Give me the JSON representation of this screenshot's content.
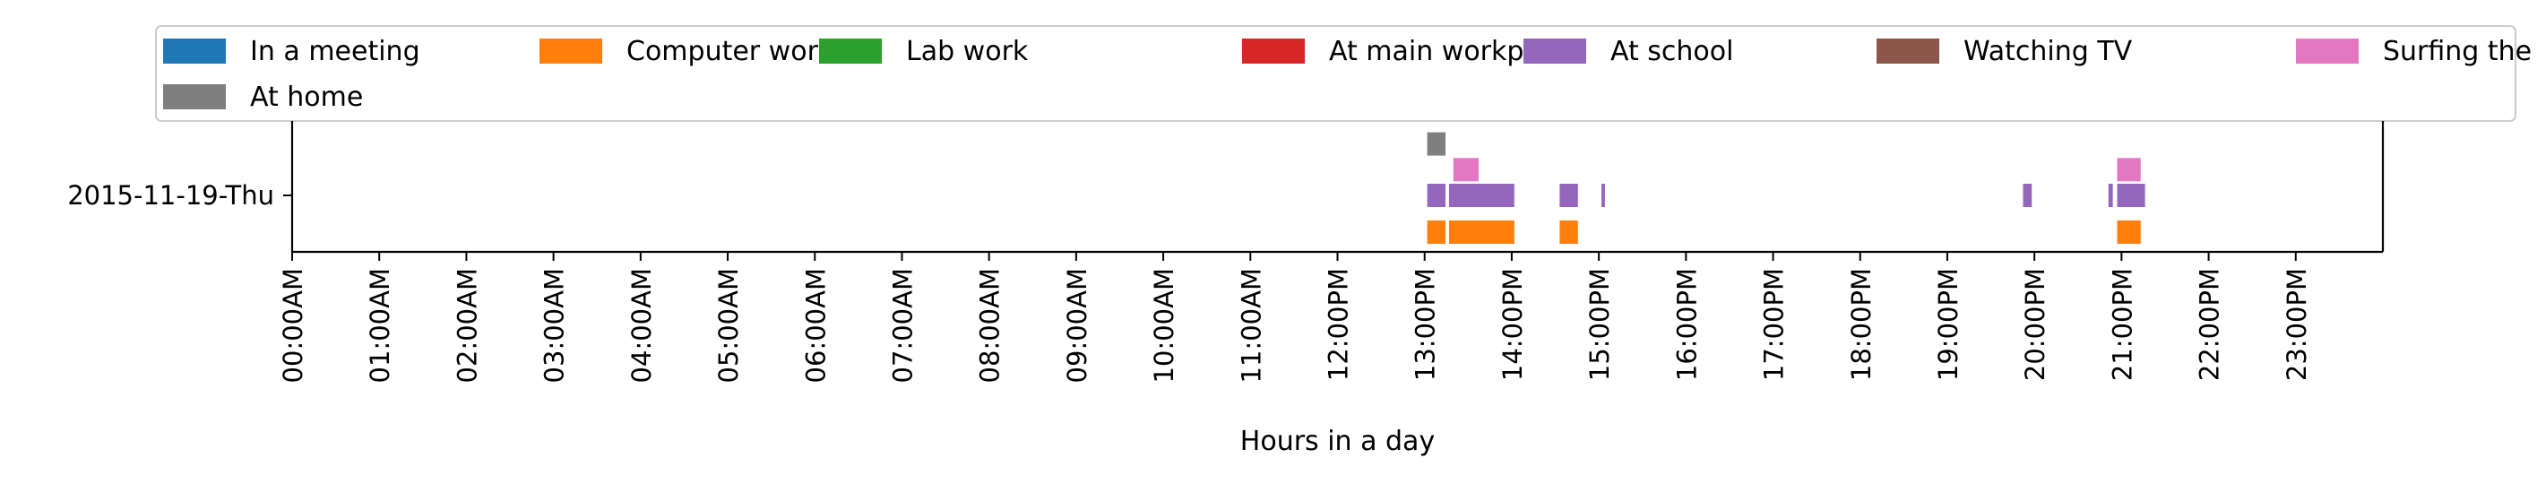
{
  "chart_data": {
    "type": "timeline",
    "xlabel": "Hours in a day",
    "ylabel": "",
    "xlim": [
      0,
      24
    ],
    "grid": false,
    "legend_placement": "top",
    "y_categories": [
      "2015-11-19-Thu"
    ],
    "x_ticks": [
      {
        "value": 0,
        "label": "00:00AM"
      },
      {
        "value": 1,
        "label": "01:00AM"
      },
      {
        "value": 2,
        "label": "02:00AM"
      },
      {
        "value": 3,
        "label": "03:00AM"
      },
      {
        "value": 4,
        "label": "04:00AM"
      },
      {
        "value": 5,
        "label": "05:00AM"
      },
      {
        "value": 6,
        "label": "06:00AM"
      },
      {
        "value": 7,
        "label": "07:00AM"
      },
      {
        "value": 8,
        "label": "08:00AM"
      },
      {
        "value": 9,
        "label": "09:00AM"
      },
      {
        "value": 10,
        "label": "10:00AM"
      },
      {
        "value": 11,
        "label": "11:00AM"
      },
      {
        "value": 12,
        "label": "12:00PM"
      },
      {
        "value": 13,
        "label": "13:00PM"
      },
      {
        "value": 14,
        "label": "14:00PM"
      },
      {
        "value": 15,
        "label": "15:00PM"
      },
      {
        "value": 16,
        "label": "16:00PM"
      },
      {
        "value": 17,
        "label": "17:00PM"
      },
      {
        "value": 18,
        "label": "18:00PM"
      },
      {
        "value": 19,
        "label": "19:00PM"
      },
      {
        "value": 20,
        "label": "20:00PM"
      },
      {
        "value": 21,
        "label": "21:00PM"
      },
      {
        "value": 22,
        "label": "22:00PM"
      },
      {
        "value": 23,
        "label": "23:00PM"
      }
    ],
    "series": [
      {
        "name": "In a meeting",
        "color": "#1f77b4",
        "lane": 5,
        "intervals": []
      },
      {
        "name": "Computer work",
        "color": "#ff7f0e",
        "lane": -1,
        "intervals": [
          [
            13.03,
            13.24
          ],
          [
            13.28,
            14.03
          ],
          [
            14.55,
            14.76
          ],
          [
            20.95,
            21.22
          ]
        ]
      },
      {
        "name": "Lab work",
        "color": "#2ca02c",
        "lane": 4,
        "intervals": []
      },
      {
        "name": "At main workplace",
        "color": "#d62728",
        "lane": 3,
        "intervals": []
      },
      {
        "name": "At school",
        "color": "#9467bd",
        "lane": 0,
        "intervals": [
          [
            13.03,
            13.24
          ],
          [
            13.28,
            14.03
          ],
          [
            14.55,
            14.76
          ],
          [
            15.03,
            15.07
          ],
          [
            19.87,
            19.97
          ],
          [
            20.85,
            20.9
          ],
          [
            20.95,
            21.27
          ]
        ]
      },
      {
        "name": "Watching TV",
        "color": "#8c564b",
        "lane": 2,
        "intervals": []
      },
      {
        "name": "Surfing the internet",
        "color": "#e377c2",
        "lane": 0.7,
        "intervals": [
          [
            13.33,
            13.62
          ],
          [
            20.95,
            21.22
          ]
        ]
      },
      {
        "name": "At home",
        "color": "#7f7f7f",
        "lane": 1.4,
        "intervals": [
          [
            13.03,
            13.24
          ]
        ]
      }
    ]
  }
}
